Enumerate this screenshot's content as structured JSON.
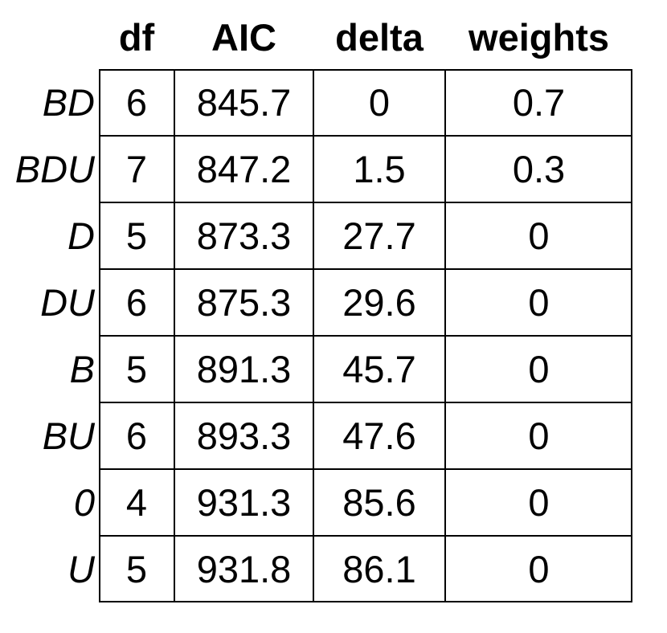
{
  "chart_data": {
    "type": "table",
    "columns": [
      "df",
      "AIC",
      "delta",
      "weights"
    ],
    "rows": [
      {
        "label": "BD",
        "cells": [
          "6",
          "845.7",
          "0",
          "0.7"
        ]
      },
      {
        "label": "BDU",
        "cells": [
          "7",
          "847.2",
          "1.5",
          "0.3"
        ]
      },
      {
        "label": "D",
        "cells": [
          "5",
          "873.3",
          "27.7",
          "0"
        ]
      },
      {
        "label": "DU",
        "cells": [
          "6",
          "875.3",
          "29.6",
          "0"
        ]
      },
      {
        "label": "B",
        "cells": [
          "5",
          "891.3",
          "45.7",
          "0"
        ]
      },
      {
        "label": "BU",
        "cells": [
          "6",
          "893.3",
          "47.6",
          "0"
        ]
      },
      {
        "label": "0",
        "cells": [
          "4",
          "931.3",
          "85.6",
          "0"
        ]
      },
      {
        "label": "U",
        "cells": [
          "5",
          "931.8",
          "86.1",
          "0"
        ]
      }
    ]
  }
}
